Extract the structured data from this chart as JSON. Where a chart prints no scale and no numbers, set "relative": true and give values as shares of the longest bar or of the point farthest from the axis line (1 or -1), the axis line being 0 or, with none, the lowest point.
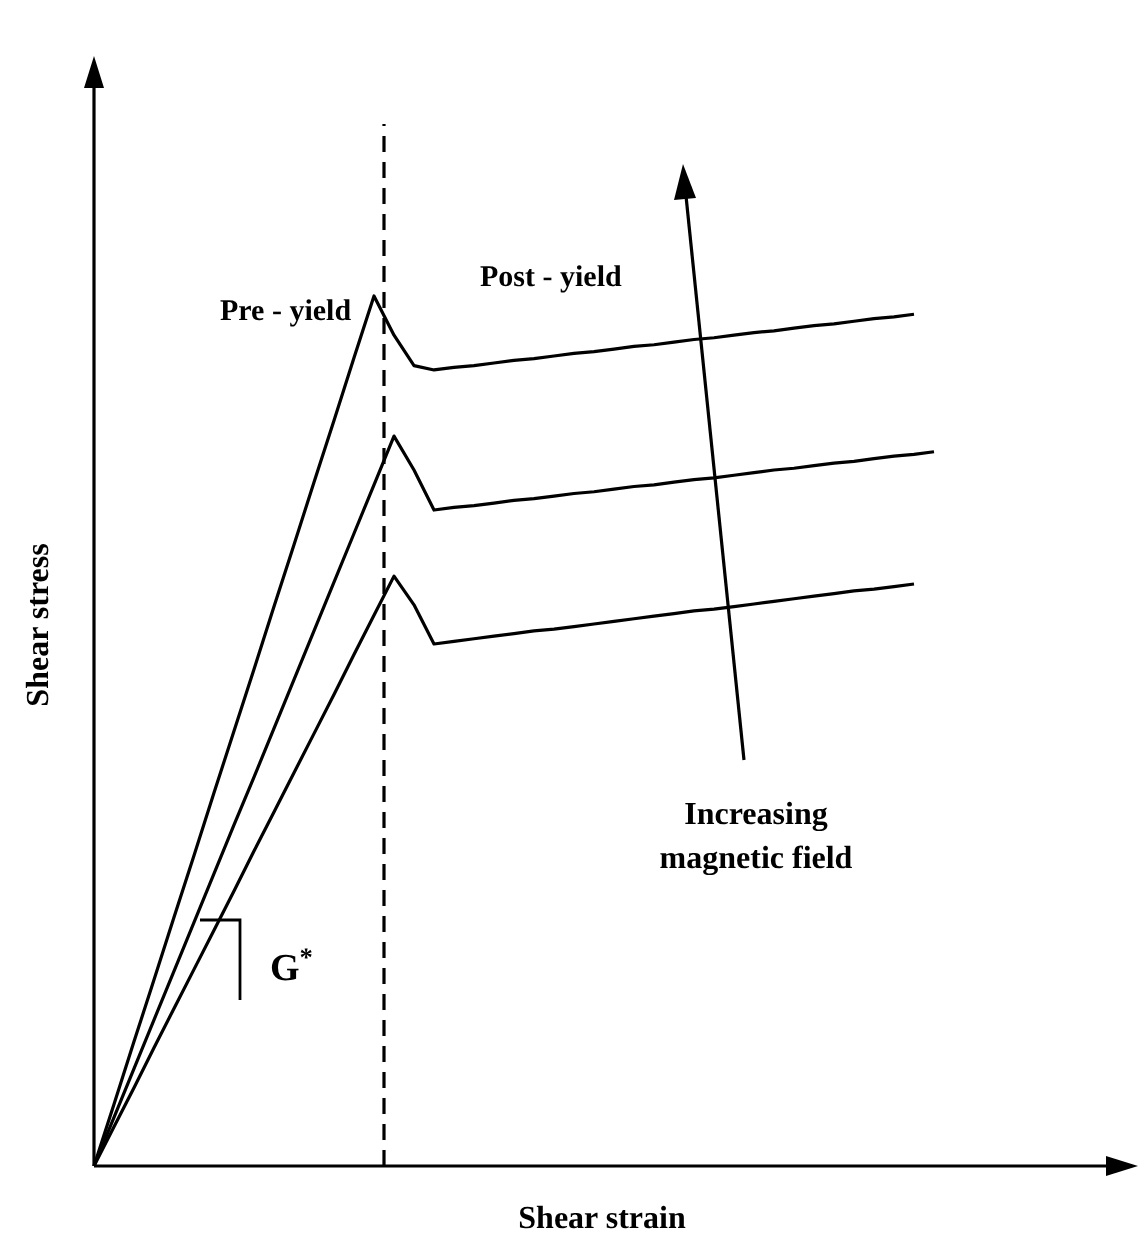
{
  "chart_data": {
    "type": "line",
    "relative": true,
    "xlabel": "Shear strain",
    "ylabel": "Shear stress",
    "line_style": "solid",
    "annotations": [
      "Pre - yield",
      "Post - yield",
      "Increasing magnetic field",
      "G$^{*}$"
    ],
    "categories": [
      null,
      null,
      null,
      null,
      null,
      null,
      null,
      null,
      null,
      null,
      null,
      null,
      null,
      null,
      null,
      null,
      null,
      null,
      null,
      null,
      null,
      null,
      null,
      null,
      null,
      null,
      null,
      null,
      null,
      null,
      null,
      null,
      null,
      null,
      null,
      null,
      null,
      null,
      null,
      null,
      null,
      null,
      null
    ],
    "series": [
      {
        "color": "#000000",
        "values": [
          0,
          0.071,
          0.143,
          0.214,
          0.286,
          0.357,
          0.429,
          0.5,
          0.571,
          0.643,
          0.714,
          0.786,
          0.857,
          0.929,
          1,
          0.955,
          0.92,
          0.915,
          0.918,
          0.92,
          0.923,
          0.926,
          0.928,
          0.931,
          0.934,
          0.936,
          0.939,
          0.942,
          0.944,
          0.947,
          0.95,
          0.952,
          0.955,
          0.958,
          0.96,
          0.963,
          0.966,
          0.968,
          0.971,
          0.974,
          0.976,
          0.979,
          null
        ]
      },
      {
        "color": "#000000",
        "values": [
          0,
          0.056,
          0.112,
          0.168,
          0.224,
          0.28,
          0.336,
          0.392,
          0.447,
          0.503,
          0.559,
          0.615,
          0.671,
          0.727,
          0.783,
          0.839,
          0.8,
          0.754,
          0.757,
          0.759,
          0.762,
          0.765,
          0.767,
          0.77,
          0.773,
          0.775,
          0.778,
          0.781,
          0.783,
          0.786,
          0.789,
          0.791,
          0.794,
          0.797,
          0.8,
          0.802,
          0.805,
          0.808,
          0.81,
          0.813,
          0.816,
          0.818,
          0.821
        ]
      },
      {
        "color": "#000000",
        "values": [
          0,
          0.045,
          0.09,
          0.136,
          0.181,
          0.226,
          0.271,
          0.316,
          0.362,
          0.407,
          0.452,
          0.497,
          0.542,
          0.588,
          0.633,
          0.678,
          0.645,
          0.6,
          0.603,
          0.606,
          0.609,
          0.612,
          0.615,
          0.617,
          0.62,
          0.623,
          0.626,
          0.629,
          0.632,
          0.635,
          0.638,
          0.64,
          0.643,
          0.646,
          0.649,
          0.652,
          0.655,
          0.658,
          0.661,
          0.663,
          0.666,
          0.669,
          null
        ]
      }
    ]
  }
}
